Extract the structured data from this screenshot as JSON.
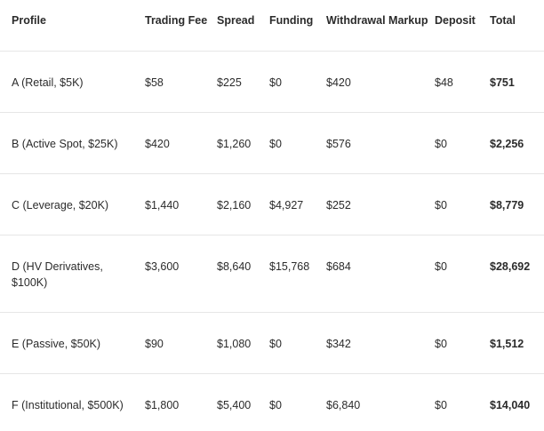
{
  "table": {
    "headers": [
      "Profile",
      "Trading Fee",
      "Spread",
      "Funding",
      "Withdrawal Markup",
      "Deposit",
      "Total"
    ],
    "rows": [
      [
        "A (Retail, $5K)",
        "$58",
        "$225",
        "$0",
        "$420",
        "$48",
        "$751"
      ],
      [
        "B (Active Spot, $25K)",
        "$420",
        "$1,260",
        "$0",
        "$576",
        "$0",
        "$2,256"
      ],
      [
        "C (Leverage, $20K)",
        "$1,440",
        "$2,160",
        "$4,927",
        "$252",
        "$0",
        "$8,779"
      ],
      [
        "D (HV Derivatives, $100K)",
        "$3,600",
        "$8,640",
        "$15,768",
        "$684",
        "$0",
        "$28,692"
      ],
      [
        "E (Passive, $50K)",
        "$90",
        "$1,080",
        "$0",
        "$342",
        "$0",
        "$1,512"
      ],
      [
        "F (Institutional, $500K)",
        "$1,800",
        "$5,400",
        "$0",
        "$6,840",
        "$0",
        "$14,040"
      ]
    ]
  }
}
